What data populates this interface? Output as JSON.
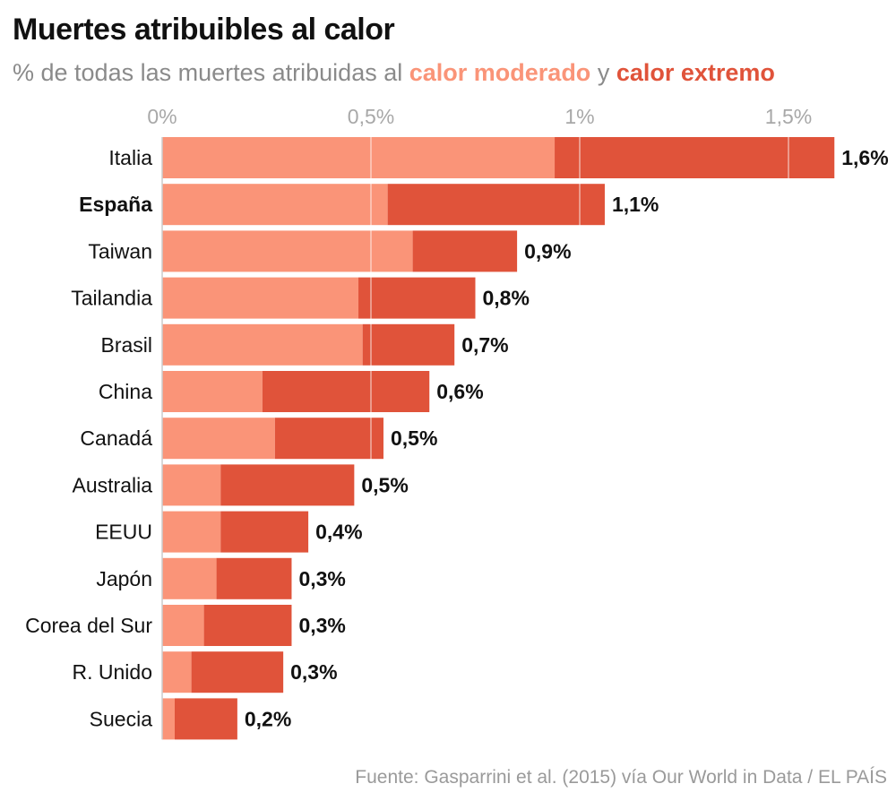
{
  "title": "Muertes atribuibles al calor",
  "subtitle": {
    "prefix": "% de todas las muertes atribuidas al",
    "moderate": "calor moderado",
    "conjunction": "y",
    "extreme": "calor extremo"
  },
  "source": "Fuente: Gasparrini et al. (2015) vía Our World in Data / EL PAÍS",
  "colors": {
    "moderate": "#fa9478",
    "extreme": "#e0533a",
    "axis_text": "#a8a8a8",
    "text": "#111111"
  },
  "chart_data": {
    "type": "bar",
    "orientation": "horizontal",
    "stacked": true,
    "x_ticks": [
      "0%",
      "0,5%",
      "1%",
      "1,5%"
    ],
    "x_tick_values": [
      0,
      0.5,
      1.0,
      1.5
    ],
    "xlim": [
      0,
      1.65
    ],
    "grid": true,
    "categories": [
      "Italia",
      "España",
      "Taiwan",
      "Tailandia",
      "Brasil",
      "China",
      "Canadá",
      "Australia",
      "EEUU",
      "Japón",
      "Corea del Sur",
      "R. Unido",
      "Suecia"
    ],
    "highlight": "España",
    "series": [
      {
        "name": "calor moderado",
        "values": [
          0.94,
          0.54,
          0.6,
          0.47,
          0.48,
          0.24,
          0.27,
          0.14,
          0.14,
          0.13,
          0.1,
          0.07,
          0.03
        ]
      },
      {
        "name": "calor extremo",
        "values": [
          0.67,
          0.52,
          0.25,
          0.28,
          0.22,
          0.4,
          0.26,
          0.32,
          0.21,
          0.18,
          0.21,
          0.22,
          0.15
        ]
      }
    ],
    "totals": [
      "1,6%",
      "1,1%",
      "0,9%",
      "0,8%",
      "0,7%",
      "0,6%",
      "0,5%",
      "0,5%",
      "0,4%",
      "0,3%",
      "0,3%",
      "0,3%",
      "0,2%"
    ]
  }
}
